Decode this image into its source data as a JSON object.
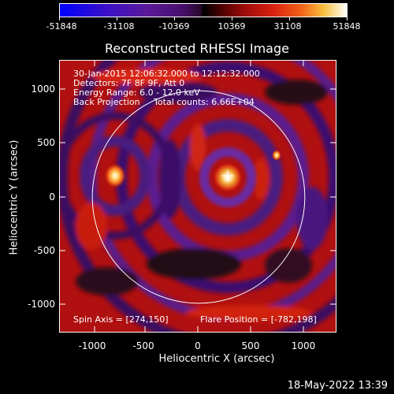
{
  "colorbar": {
    "ticks": [
      "-51848",
      "-31108",
      "-10369",
      "10369",
      "31108",
      "51848"
    ]
  },
  "plot": {
    "title": "Reconstructed RHESSI Image",
    "info_lines": [
      "30-Jan-2015 12:06:32.000 to 12:12:32.000",
      "Detectors: 7F 8F 9F, Att 0",
      "Energy Range: 6.0 - 12.0 keV",
      "Back Projection     Total counts: 6.66E+04"
    ],
    "spin_axis": "Spin Axis = [274,150]",
    "flare_position": "Flare Position = [-782,198]",
    "xlabel": "Heliocentric X (arcsec)",
    "ylabel": "Heliocentric Y (arcsec)",
    "xticks": [
      "-1000",
      "-500",
      "0",
      "500",
      "1000"
    ],
    "yticks": [
      "1000",
      "500",
      "0",
      "-500",
      "-1000"
    ],
    "x_range": [
      -1290,
      1290
    ],
    "y_range": [
      -1260,
      1260
    ],
    "solar_radius_arcsec": 985
  },
  "footer": {
    "timestamp": "18-May-2022 13:39"
  }
}
